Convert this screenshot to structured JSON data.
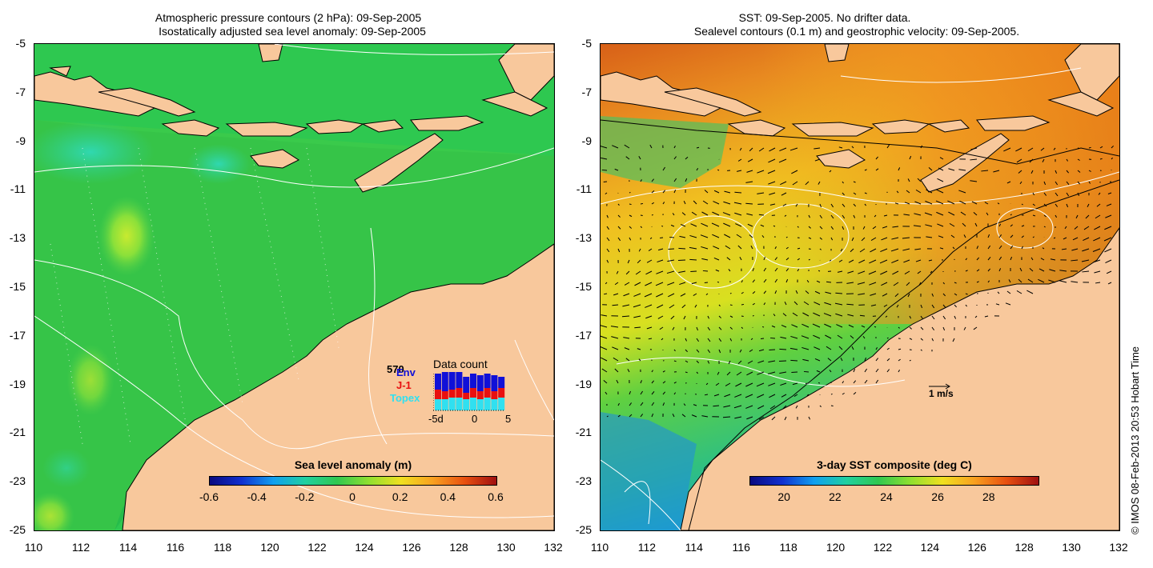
{
  "left_panel": {
    "title_line1": "Atmospheric pressure contours (2 hPa): 09-Sep-2005",
    "title_line2": "Isostatically adjusted sea level anomaly: 09-Sep-2005",
    "y_ticks": [
      "-5",
      "-7",
      "-9",
      "-11",
      "-13",
      "-15",
      "-17",
      "-19",
      "-21",
      "-23",
      "-25"
    ],
    "x_ticks": [
      "110",
      "112",
      "114",
      "116",
      "118",
      "120",
      "122",
      "124",
      "126",
      "128",
      "130",
      "132"
    ],
    "colorbar": {
      "title": "Sea level anomaly (m)",
      "labels": [
        "-0.6",
        "-0.4",
        "-0.2",
        "0",
        "0.2",
        "0.4",
        "0.6"
      ]
    },
    "data_count": {
      "title": "Data count",
      "max_label": "570",
      "series": [
        "Env",
        "J-1",
        "Topex"
      ],
      "x_labels": [
        "-5d",
        "0",
        "5"
      ],
      "colors": {
        "Env": "#1010d8",
        "J-1": "#e81010",
        "Topex": "#30e0f0"
      }
    }
  },
  "right_panel": {
    "title_line1": "SST: 09-Sep-2005. No drifter data.",
    "title_line2": "Sealevel contours (0.1 m) and geostrophic velocity: 09-Sep-2005.",
    "y_ticks": [
      "-5",
      "-7",
      "-9",
      "-11",
      "-13",
      "-15",
      "-17",
      "-19",
      "-21",
      "-23",
      "-25"
    ],
    "x_ticks": [
      "110",
      "112",
      "114",
      "116",
      "118",
      "120",
      "122",
      "124",
      "126",
      "128",
      "130",
      "132"
    ],
    "velocity_scale_label": "1 m/s",
    "colorbar": {
      "title": "3-day SST composite (deg C)",
      "labels": [
        "20",
        "22",
        "24",
        "26",
        "28"
      ]
    }
  },
  "credit": "© IMOS 08-Feb-2013 20:53 Hobart Time",
  "colors": {
    "land": "#f8c89c",
    "ocean_sla": "#30c850",
    "sst_warm": "#e89020"
  }
}
